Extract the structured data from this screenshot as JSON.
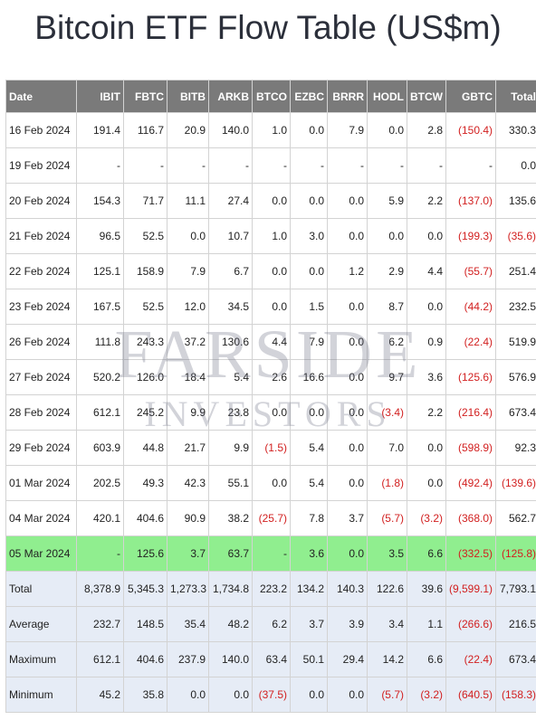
{
  "title": "Bitcoin ETF Flow Table (US$m)",
  "columns": [
    "Date",
    "IBIT",
    "FBTC",
    "BITB",
    "ARKB",
    "BTCO",
    "EZBC",
    "BRRR",
    "HODL",
    "BTCW",
    "GBTC",
    "Total"
  ],
  "rows": [
    {
      "cells": [
        "16 Feb 2024",
        "191.4",
        "116.7",
        "20.9",
        "140.0",
        "1.0",
        "0.0",
        "7.9",
        "0.0",
        "2.8",
        "(150.4)",
        "330.3"
      ]
    },
    {
      "cells": [
        "19 Feb 2024",
        "-",
        "-",
        "-",
        "-",
        "-",
        "-",
        "-",
        "-",
        "-",
        "-",
        "0.0"
      ]
    },
    {
      "cells": [
        "20 Feb 2024",
        "154.3",
        "71.7",
        "11.1",
        "27.4",
        "0.0",
        "0.0",
        "0.0",
        "5.9",
        "2.2",
        "(137.0)",
        "135.6"
      ]
    },
    {
      "cells": [
        "21 Feb 2024",
        "96.5",
        "52.5",
        "0.0",
        "10.7",
        "1.0",
        "3.0",
        "0.0",
        "0.0",
        "0.0",
        "(199.3)",
        "(35.6)"
      ]
    },
    {
      "cells": [
        "22 Feb 2024",
        "125.1",
        "158.9",
        "7.9",
        "6.7",
        "0.0",
        "0.0",
        "1.2",
        "2.9",
        "4.4",
        "(55.7)",
        "251.4"
      ]
    },
    {
      "cells": [
        "23 Feb 2024",
        "167.5",
        "52.5",
        "12.0",
        "34.5",
        "0.0",
        "1.5",
        "0.0",
        "8.7",
        "0.0",
        "(44.2)",
        "232.5"
      ]
    },
    {
      "cells": [
        "26 Feb 2024",
        "111.8",
        "243.3",
        "37.2",
        "130.6",
        "4.4",
        "7.9",
        "0.0",
        "6.2",
        "0.9",
        "(22.4)",
        "519.9"
      ]
    },
    {
      "cells": [
        "27 Feb 2024",
        "520.2",
        "126.0",
        "18.4",
        "5.4",
        "2.6",
        "16.6",
        "0.0",
        "9.7",
        "3.6",
        "(125.6)",
        "576.9"
      ]
    },
    {
      "cells": [
        "28 Feb 2024",
        "612.1",
        "245.2",
        "9.9",
        "23.8",
        "0.0",
        "0.0",
        "0.0",
        "(3.4)",
        "2.2",
        "(216.4)",
        "673.4"
      ]
    },
    {
      "cells": [
        "29 Feb 2024",
        "603.9",
        "44.8",
        "21.7",
        "9.9",
        "(1.5)",
        "5.4",
        "0.0",
        "7.0",
        "0.0",
        "(598.9)",
        "92.3"
      ]
    },
    {
      "cells": [
        "01 Mar 2024",
        "202.5",
        "49.3",
        "42.3",
        "55.1",
        "0.0",
        "5.4",
        "0.0",
        "(1.8)",
        "0.0",
        "(492.4)",
        "(139.6)"
      ]
    },
    {
      "cells": [
        "04 Mar 2024",
        "420.1",
        "404.6",
        "90.9",
        "38.2",
        "(25.7)",
        "7.8",
        "3.7",
        "(5.7)",
        "(3.2)",
        "(368.0)",
        "562.7"
      ]
    },
    {
      "cells": [
        "05 Mar 2024",
        "-",
        "125.6",
        "3.7",
        "63.7",
        "-",
        "3.6",
        "0.0",
        "3.5",
        "6.6",
        "(332.5)",
        "(125.8)"
      ],
      "highlight": true
    }
  ],
  "summary": [
    {
      "cells": [
        "Total",
        "8,378.9",
        "5,345.3",
        "1,273.3",
        "1,734.8",
        "223.2",
        "134.2",
        "140.3",
        "122.6",
        "39.6",
        "(9,599.1)",
        "7,793.1"
      ]
    },
    {
      "cells": [
        "Average",
        "232.7",
        "148.5",
        "35.4",
        "48.2",
        "6.2",
        "3.7",
        "3.9",
        "3.4",
        "1.1",
        "(266.6)",
        "216.5"
      ]
    },
    {
      "cells": [
        "Maximum",
        "612.1",
        "404.6",
        "237.9",
        "140.0",
        "63.4",
        "50.1",
        "29.4",
        "14.2",
        "6.6",
        "(22.4)",
        "673.4"
      ]
    },
    {
      "cells": [
        "Minimum",
        "45.2",
        "35.8",
        "0.0",
        "0.0",
        "(37.5)",
        "0.0",
        "0.0",
        "(5.7)",
        "(3.2)",
        "(640.5)",
        "(158.3)"
      ]
    }
  ],
  "watermark": {
    "line1": "FARSIDE",
    "line2": "INVESTORS"
  },
  "colors": {
    "header_bg": "#7a7a7a",
    "highlight_row": "#90ee8f",
    "summary_row": "#e6ecf6",
    "negative": "#d22020"
  }
}
